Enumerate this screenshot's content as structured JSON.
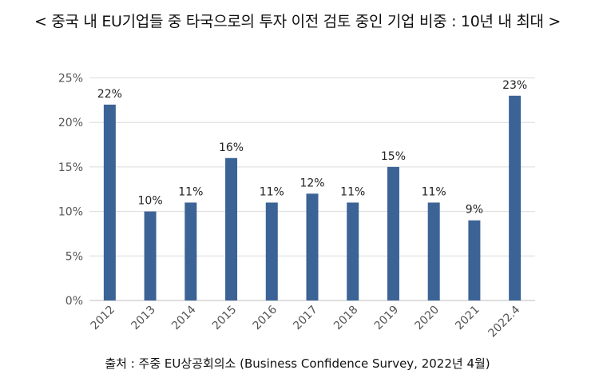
{
  "title": "< 중국 내 EU기업들 중 타국으로의 투자 이전 검토 중인 기업 비중 : 10년 내 최대 >",
  "source": "출처 : 주중 EU상공회의소 (Business Confidence Survey, 2022년 4월)",
  "chart_data": {
    "type": "bar",
    "categories": [
      "2012",
      "2013",
      "2014",
      "2015",
      "2016",
      "2017",
      "2018",
      "2019",
      "2020",
      "2021",
      "2022.4"
    ],
    "values": [
      22,
      10,
      11,
      16,
      11,
      12,
      11,
      15,
      11,
      9,
      23
    ],
    "data_labels": [
      "22%",
      "10%",
      "11%",
      "16%",
      "11%",
      "12%",
      "11%",
      "15%",
      "11%",
      "9%",
      "23%"
    ],
    "yticks": [
      "0%",
      "5%",
      "10%",
      "15%",
      "20%",
      "25%"
    ],
    "ylim": [
      0,
      25
    ],
    "bar_color": "#3c6396",
    "grid": true,
    "title": "",
    "xlabel": "",
    "ylabel": ""
  }
}
